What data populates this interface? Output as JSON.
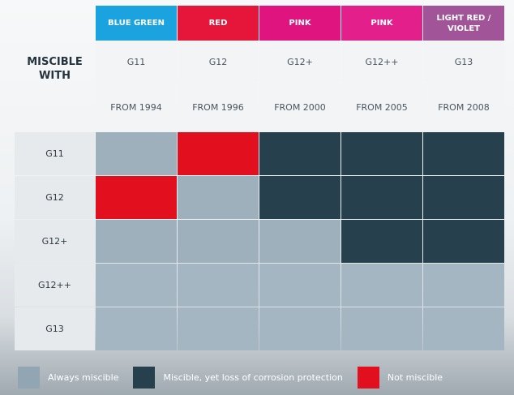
{
  "chart_data": {
    "type": "table",
    "title": "MISCIBLE WITH",
    "columns": [
      {
        "color_name": "BLUE GREEN",
        "header_color": "#1aa3de",
        "code": "G11",
        "since": "FROM 1994"
      },
      {
        "color_name": "RED",
        "header_color": "#e5163a",
        "code": "G12",
        "since": "FROM 1996"
      },
      {
        "color_name": "PINK",
        "header_color": "#e0147e",
        "code": "G12+",
        "since": "FROM 2000"
      },
      {
        "color_name": "PINK",
        "header_color": "#e21f8a",
        "code": "G12++",
        "since": "FROM 2005"
      },
      {
        "color_name": "LIGHT RED / VIOLET",
        "header_color": "#a25498",
        "code": "G13",
        "since": "FROM 2008"
      }
    ],
    "rows": [
      {
        "label": "G11",
        "values": [
          "always",
          "not",
          "loss",
          "loss",
          "loss"
        ]
      },
      {
        "label": "G12",
        "values": [
          "not",
          "always",
          "loss",
          "loss",
          "loss"
        ]
      },
      {
        "label": "G12+",
        "values": [
          "always",
          "always",
          "always",
          "loss",
          "loss"
        ]
      },
      {
        "label": "G12++",
        "values": [
          "always",
          "always",
          "always",
          "always",
          "always"
        ]
      },
      {
        "label": "G13",
        "values": [
          "always",
          "always",
          "always",
          "always",
          "always"
        ]
      }
    ],
    "legend": [
      {
        "key": "always",
        "label": "Always miscible",
        "color": "#92a5b2"
      },
      {
        "key": "loss",
        "label": "Miscible, yet loss of corrosion protection",
        "color": "#27404d"
      },
      {
        "key": "not",
        "label": "Not miscible",
        "color": "#e2101f"
      }
    ],
    "legend_placement": "bottom"
  },
  "cell_colors": {
    "always_light": "#9db0bc",
    "always_lower": "#a4b6c1",
    "loss": "#27404d",
    "not": "#e2101f"
  }
}
